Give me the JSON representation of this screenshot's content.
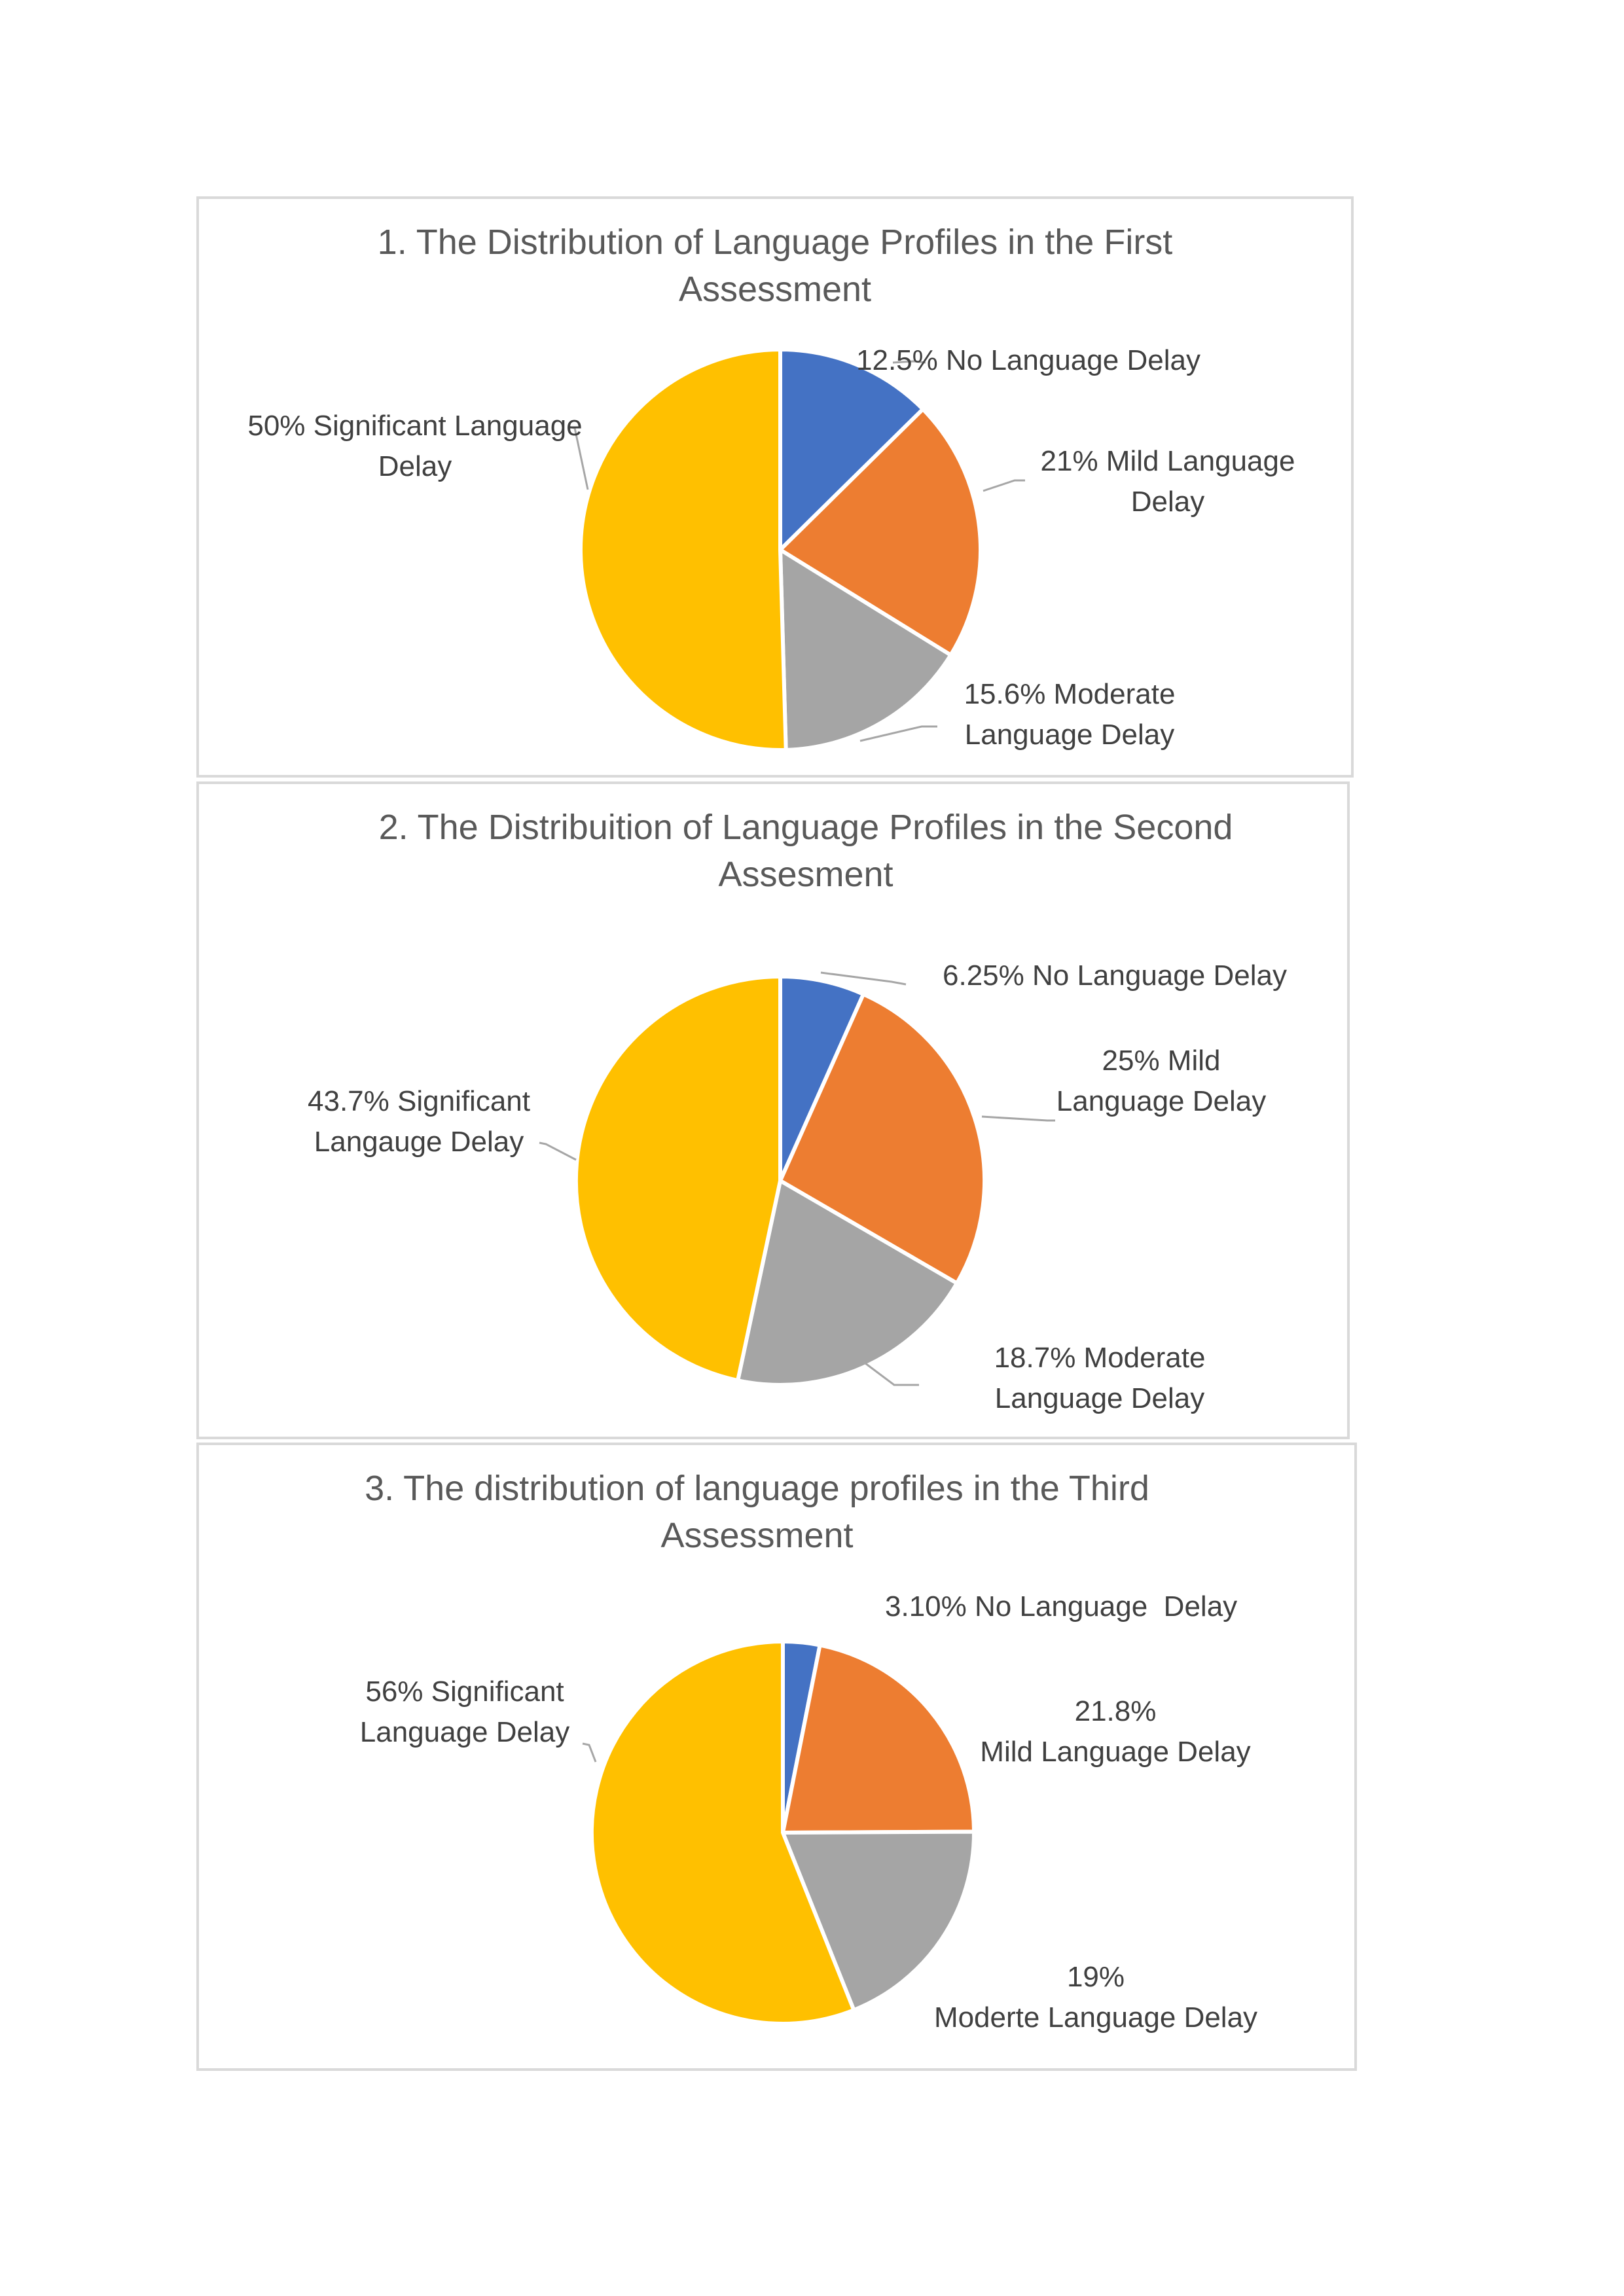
{
  "chart_data": [
    {
      "type": "pie",
      "title": "1. The Distribution of Language Profiles in the First\nAssessment",
      "slices": [
        {
          "value": 12.5,
          "color": "#4472c4",
          "label": "12.5% No Language Delay"
        },
        {
          "value": 21,
          "color": "#ed7d31",
          "label": "21% Mild Language\nDelay"
        },
        {
          "value": 15.6,
          "color": "#a5a5a5",
          "label": "15.6% Moderate\nLanguage Delay"
        },
        {
          "value": 50,
          "color": "#ffc000",
          "label": "50% Significant Language\nDelay"
        }
      ]
    },
    {
      "type": "pie",
      "title": "2. The Distribuition of Language Profiles in the Second\nAssesment",
      "slices": [
        {
          "value": 6.25,
          "color": "#4472c4",
          "label": "6.25% No Language Delay"
        },
        {
          "value": 25,
          "color": "#ed7d31",
          "label": "25% Mild\nLanguage Delay"
        },
        {
          "value": 18.7,
          "color": "#a5a5a5",
          "label": "18.7% Moderate\nLanguage Delay"
        },
        {
          "value": 43.7,
          "color": "#ffc000",
          "label": "43.7% Significant\nLangauge Delay"
        }
      ]
    },
    {
      "type": "pie",
      "title": "3. The distribution of language profiles in the Third\nAssessment",
      "slices": [
        {
          "value": 3.1,
          "color": "#4472c4",
          "label": "3.10% No Language  Delay"
        },
        {
          "value": 21.8,
          "color": "#ed7d31",
          "label": "21.8%\nMild Language Delay"
        },
        {
          "value": 19,
          "color": "#a5a5a5",
          "label": "19%\nModerte Language Delay"
        },
        {
          "value": 56,
          "color": "#ffc000",
          "label": "56% Significant\nLanguage Delay"
        }
      ]
    }
  ]
}
